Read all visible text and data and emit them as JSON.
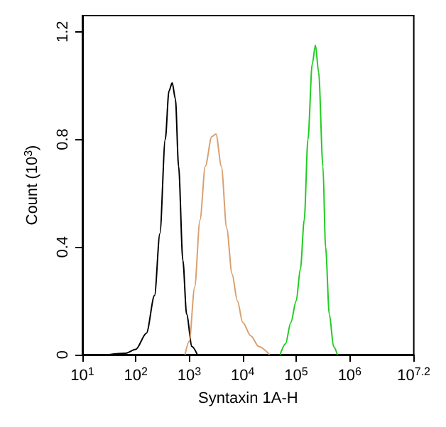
{
  "chart_data": {
    "type": "line",
    "xlabel": "Syntaxin 1A-H",
    "ylabel": "Count (10$^{3}$)",
    "log": "x",
    "grid": false,
    "marker": "none",
    "line_style": "solid",
    "xlim": [
      10,
      15848932
    ],
    "xticks": [
      {
        "value": 10,
        "label": "10$^{1}$"
      },
      {
        "value": 100,
        "label": "10$^{2}$"
      },
      {
        "value": 1000,
        "label": "10$^{3}$"
      },
      {
        "value": 10000,
        "label": "10$^{4}$"
      },
      {
        "value": 100000,
        "label": "10$^{5}$"
      },
      {
        "value": 1000000,
        "label": "10$^{6}$"
      },
      {
        "value": 15848932,
        "label": "10$^{7.2}$"
      }
    ],
    "ylim": [
      0,
      1.26
    ],
    "yticks": [
      0,
      0.4,
      0.8,
      1.2
    ],
    "series": [
      {
        "color": "#000000",
        "x": [
          31.6,
          63.1,
          100,
          158,
          224,
          282,
          355,
          417,
          479,
          550,
          631,
          759,
          891,
          1122,
          1413
        ],
        "values": [
          0,
          0.005,
          0.02,
          0.08,
          0.22,
          0.45,
          0.8,
          0.98,
          1.01,
          0.95,
          0.7,
          0.35,
          0.15,
          0.03,
          0
        ]
      },
      {
        "color": "#d9a070",
        "x": [
          832,
          1000,
          1259,
          1585,
          1995,
          2630,
          3162,
          3981,
          5012,
          6310,
          7943,
          10000,
          14125,
          19953,
          31623
        ],
        "values": [
          0,
          0.05,
          0.25,
          0.5,
          0.7,
          0.81,
          0.82,
          0.7,
          0.47,
          0.3,
          0.2,
          0.12,
          0.07,
          0.03,
          0
        ]
      },
      {
        "color": "#22cc22",
        "x": [
          50119,
          63096,
          79433,
          100000,
          120226,
          141254,
          165959,
          199526,
          229087,
          263027,
          316228,
          354813,
          416869,
          501187,
          588844
        ],
        "values": [
          0,
          0.04,
          0.12,
          0.2,
          0.32,
          0.5,
          0.8,
          1.08,
          1.15,
          1.05,
          0.7,
          0.4,
          0.15,
          0.03,
          0
        ]
      }
    ]
  }
}
